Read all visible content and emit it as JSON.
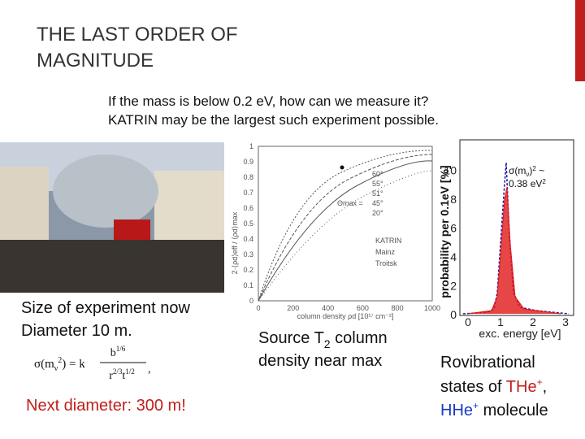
{
  "title": [
    "THE LAST ORDER OF",
    "MAGNITUDE"
  ],
  "subtitle": [
    "If the mass is below 0.2 eV, how can we measure it?",
    "KATRIN may be the largest such experiment possible."
  ],
  "left": {
    "caption": [
      "Size of experiment now",
      "Diameter 10 m."
    ],
    "formula": {
      "lhs": "σ(m",
      "lhs_sub": "ν",
      "lhs_sup": "2",
      "lhs_end": ") = k",
      "num": "b",
      "num_sup": "1/6",
      "den": "r",
      "den_sup": "2/3",
      "den_mid": "t",
      "den_sup2": "1/2",
      "end": ","
    },
    "next": "Next diameter: 300 m!"
  },
  "center": {
    "plot": {
      "yticks": [
        "0",
        "0.1",
        "0.2",
        "0.3",
        "0.4",
        "0.5",
        "0.6",
        "0.7",
        "0.8",
        "0.9",
        "1"
      ],
      "xticks": [
        "0",
        "200",
        "400",
        "600",
        "800",
        "1000"
      ],
      "ylabel": "2·⟨ρd⟩eff / ⟨ρd⟩max",
      "xlabel": "column density ρd [10¹⁷ cm⁻²]",
      "theta_label": "Θmax =",
      "angles": [
        "60°",
        "55°",
        "51°",
        "45°",
        "20°"
      ],
      "markers": [
        "KATRIN",
        "Mainz",
        "Troitsk"
      ]
    },
    "caption": {
      "pre": "Source T",
      "sub": "2",
      "post": " column",
      "line2": "density near max"
    }
  },
  "right": {
    "plot": {
      "yticks": [
        "0",
        "2",
        "4",
        "6",
        "8",
        "10"
      ],
      "xticks": [
        "0",
        "1",
        "2",
        "3"
      ],
      "ylabel": "probability per 0.1eV [%]",
      "xlabel": "exc. energy [eV]",
      "note": {
        "a": "σ(m",
        "a_sub": "ν",
        "b": ")",
        "b_sup": "2",
        "c": " ~",
        "line2": "0.38 eV",
        "line2_sup": "2"
      }
    },
    "caption": {
      "line1": "Rovibrational",
      "line2_pre": "states of ",
      "the": "THe",
      "the_sup": "+",
      "line2_post": ",",
      "hhe": "HHe",
      "hhe_sup": "+",
      "line3_post": " molecule"
    }
  }
}
